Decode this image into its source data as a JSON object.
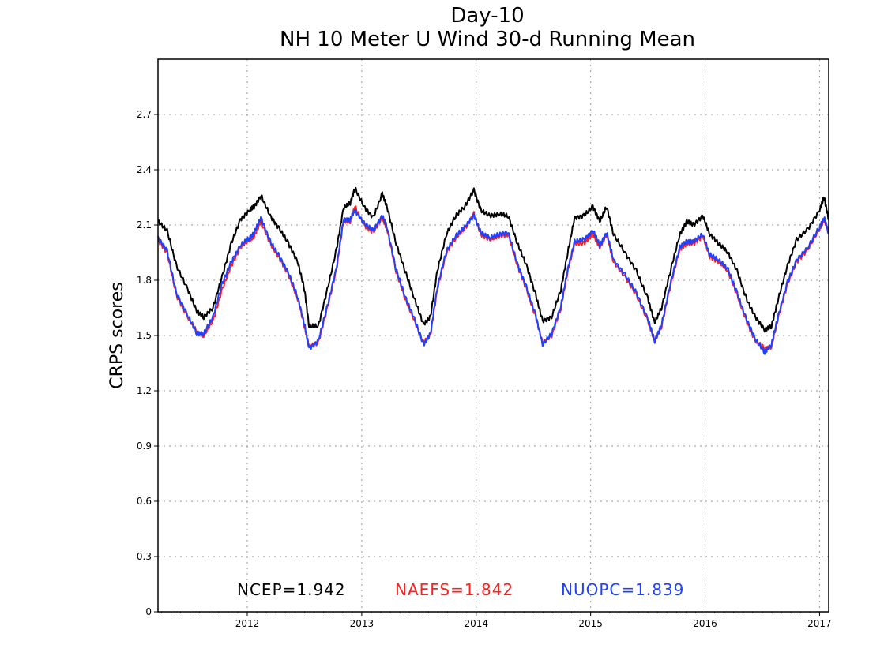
{
  "chart_data": {
    "type": "line",
    "title": "Day-10",
    "subtitle": "NH 10 Meter U Wind 30-d Running Mean",
    "xlabel": "",
    "ylabel": "CRPS scores",
    "x_ticks": [
      "2012",
      "2013",
      "2014",
      "2015",
      "2016",
      "2017"
    ],
    "y_ticks": [
      "0",
      "0.3",
      "0.6",
      "0.9",
      "1.2",
      "1.5",
      "1.8",
      "2.1",
      "2.4",
      "2.7"
    ],
    "ylim": [
      0,
      3.0
    ],
    "xlim": [
      2011.22,
      2017.08
    ],
    "grid": true,
    "series": [
      {
        "name": "NCEP",
        "score": "1.942",
        "color": "#000000",
        "x": [
          2011.22,
          2011.3,
          2011.38,
          2011.48,
          2011.56,
          2011.62,
          2011.7,
          2011.78,
          2011.86,
          2011.94,
          2012.02,
          2012.06,
          2012.12,
          2012.2,
          2012.28,
          2012.36,
          2012.44,
          2012.5,
          2012.54,
          2012.62,
          2012.7,
          2012.78,
          2012.84,
          2012.9,
          2012.94,
          2013.02,
          2013.1,
          2013.18,
          2013.22,
          2013.3,
          2013.38,
          2013.46,
          2013.54,
          2013.6,
          2013.66,
          2013.74,
          2013.82,
          2013.9,
          2013.98,
          2014.04,
          2014.12,
          2014.2,
          2014.28,
          2014.36,
          2014.44,
          2014.52,
          2014.58,
          2014.66,
          2014.74,
          2014.8,
          2014.86,
          2014.94,
          2015.02,
          2015.08,
          2015.14,
          2015.2,
          2015.3,
          2015.4,
          2015.5,
          2015.56,
          2015.62,
          2015.7,
          2015.78,
          2015.84,
          2015.9,
          2015.98,
          2016.04,
          2016.12,
          2016.2,
          2016.28,
          2016.36,
          2016.44,
          2016.52,
          2016.58,
          2016.64,
          2016.72,
          2016.8,
          2016.9,
          2017.0,
          2017.04,
          2017.08
        ],
        "y": [
          2.12,
          2.07,
          1.88,
          1.75,
          1.63,
          1.6,
          1.65,
          1.82,
          2.0,
          2.13,
          2.18,
          2.2,
          2.26,
          2.15,
          2.08,
          2.0,
          1.9,
          1.75,
          1.55,
          1.55,
          1.75,
          1.97,
          2.19,
          2.22,
          2.3,
          2.2,
          2.14,
          2.27,
          2.2,
          2.0,
          1.85,
          1.7,
          1.56,
          1.6,
          1.85,
          2.05,
          2.15,
          2.2,
          2.29,
          2.18,
          2.15,
          2.16,
          2.15,
          2.0,
          1.88,
          1.72,
          1.58,
          1.6,
          1.75,
          1.95,
          2.14,
          2.15,
          2.2,
          2.12,
          2.2,
          2.05,
          1.95,
          1.85,
          1.7,
          1.57,
          1.65,
          1.86,
          2.05,
          2.12,
          2.1,
          2.15,
          2.05,
          2.0,
          1.95,
          1.85,
          1.7,
          1.6,
          1.53,
          1.55,
          1.7,
          1.88,
          2.02,
          2.08,
          2.18,
          2.25,
          2.13
        ]
      },
      {
        "name": "NAEFS",
        "score": "1.842",
        "color": "#ff2020",
        "x": [
          2011.22,
          2011.3,
          2011.38,
          2011.48,
          2011.56,
          2011.62,
          2011.7,
          2011.78,
          2011.86,
          2011.94,
          2012.02,
          2012.06,
          2012.12,
          2012.2,
          2012.28,
          2012.36,
          2012.44,
          2012.5,
          2012.54,
          2012.62,
          2012.7,
          2012.78,
          2012.84,
          2012.9,
          2012.94,
          2013.02,
          2013.1,
          2013.18,
          2013.22,
          2013.3,
          2013.38,
          2013.46,
          2013.54,
          2013.6,
          2013.66,
          2013.74,
          2013.82,
          2013.9,
          2013.98,
          2014.04,
          2014.12,
          2014.2,
          2014.28,
          2014.36,
          2014.44,
          2014.52,
          2014.58,
          2014.66,
          2014.74,
          2014.8,
          2014.86,
          2014.94,
          2015.02,
          2015.08,
          2015.14,
          2015.2,
          2015.3,
          2015.4,
          2015.5,
          2015.56,
          2015.62,
          2015.7,
          2015.78,
          2015.84,
          2015.9,
          2015.98,
          2016.04,
          2016.12,
          2016.2,
          2016.28,
          2016.36,
          2016.44,
          2016.52,
          2016.58,
          2016.64,
          2016.72,
          2016.8,
          2016.9,
          2017.0,
          2017.04,
          2017.08
        ],
        "y": [
          2.02,
          1.95,
          1.72,
          1.6,
          1.52,
          1.5,
          1.58,
          1.75,
          1.88,
          1.98,
          2.02,
          2.04,
          2.12,
          2.0,
          1.92,
          1.83,
          1.7,
          1.55,
          1.44,
          1.46,
          1.65,
          1.86,
          2.12,
          2.12,
          2.2,
          2.1,
          2.06,
          2.14,
          2.08,
          1.85,
          1.7,
          1.58,
          1.46,
          1.5,
          1.75,
          1.95,
          2.03,
          2.08,
          2.16,
          2.05,
          2.02,
          2.04,
          2.05,
          1.88,
          1.75,
          1.6,
          1.46,
          1.5,
          1.65,
          1.85,
          2.0,
          2.0,
          2.05,
          1.98,
          2.05,
          1.9,
          1.82,
          1.72,
          1.58,
          1.47,
          1.55,
          1.78,
          1.97,
          2.0,
          2.0,
          2.04,
          1.93,
          1.9,
          1.85,
          1.72,
          1.58,
          1.47,
          1.43,
          1.44,
          1.6,
          1.78,
          1.9,
          1.97,
          2.08,
          2.13,
          2.06
        ]
      },
      {
        "name": "NUOPC",
        "score": "1.839",
        "color": "#2040ff",
        "x": [
          2011.22,
          2011.3,
          2011.38,
          2011.48,
          2011.56,
          2011.62,
          2011.7,
          2011.78,
          2011.86,
          2011.94,
          2012.02,
          2012.06,
          2012.12,
          2012.2,
          2012.28,
          2012.36,
          2012.44,
          2012.5,
          2012.54,
          2012.62,
          2012.7,
          2012.78,
          2012.84,
          2012.9,
          2012.94,
          2013.02,
          2013.1,
          2013.18,
          2013.22,
          2013.3,
          2013.38,
          2013.46,
          2013.54,
          2013.6,
          2013.66,
          2013.74,
          2013.82,
          2013.9,
          2013.98,
          2014.04,
          2014.12,
          2014.2,
          2014.28,
          2014.36,
          2014.44,
          2014.52,
          2014.58,
          2014.66,
          2014.74,
          2014.8,
          2014.86,
          2014.94,
          2015.02,
          2015.08,
          2015.14,
          2015.2,
          2015.3,
          2015.4,
          2015.5,
          2015.56,
          2015.62,
          2015.7,
          2015.78,
          2015.84,
          2015.9,
          2015.98,
          2016.04,
          2016.12,
          2016.2,
          2016.28,
          2016.36,
          2016.44,
          2016.52,
          2016.58,
          2016.64,
          2016.72,
          2016.8,
          2016.9,
          2017.0,
          2017.04,
          2017.08
        ],
        "y": [
          2.03,
          1.96,
          1.73,
          1.61,
          1.51,
          1.51,
          1.6,
          1.78,
          1.9,
          1.99,
          2.03,
          2.06,
          2.14,
          2.01,
          1.93,
          1.84,
          1.71,
          1.56,
          1.43,
          1.47,
          1.66,
          1.87,
          2.13,
          2.13,
          2.18,
          2.11,
          2.07,
          2.15,
          2.09,
          1.86,
          1.71,
          1.59,
          1.45,
          1.51,
          1.76,
          1.96,
          2.04,
          2.09,
          2.15,
          2.06,
          2.03,
          2.05,
          2.06,
          1.89,
          1.76,
          1.61,
          1.45,
          1.51,
          1.66,
          1.86,
          2.01,
          2.02,
          2.07,
          1.99,
          2.06,
          1.91,
          1.83,
          1.73,
          1.59,
          1.47,
          1.56,
          1.79,
          1.98,
          2.01,
          2.01,
          2.05,
          1.94,
          1.91,
          1.86,
          1.73,
          1.59,
          1.48,
          1.41,
          1.45,
          1.61,
          1.79,
          1.91,
          1.98,
          2.09,
          2.14,
          2.05
        ]
      }
    ]
  }
}
